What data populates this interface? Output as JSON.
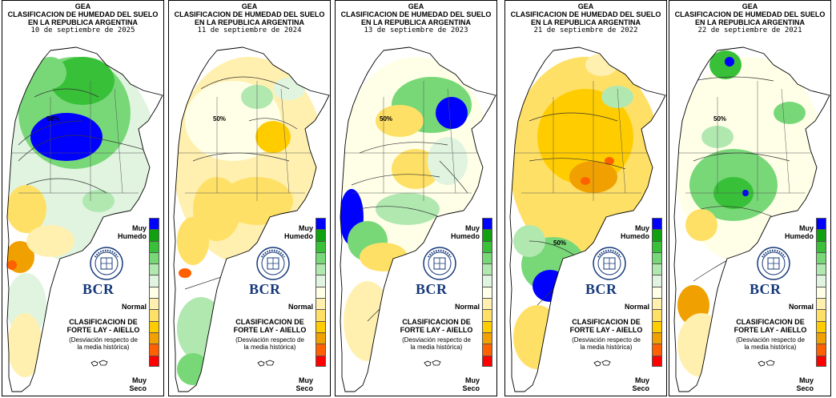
{
  "header": {
    "org": "GEA",
    "line1": "CLASIFICACION DE HUMEDAD DEL SUELO",
    "line2": "EN LA REPUBLICA ARGENTINA"
  },
  "panels": [
    {
      "date": "10 de septiembre de 2025",
      "contour_label": "50%"
    },
    {
      "date": "11 de septiembre de 2024",
      "contour_label": "50%"
    },
    {
      "date": "13 de septiembre de 2023",
      "contour_label": "50%"
    },
    {
      "date": "21 de septiembre de 2022",
      "contour_label": "50%"
    },
    {
      "date": "22 de septiembre de 2021",
      "contour_label": "50%"
    }
  ],
  "legend": {
    "top_label_1": "Muy",
    "top_label_2": "Humedo",
    "mid_label": "Normal",
    "bottom_label_1": "Muy",
    "bottom_label_2": "Seco",
    "classes": [
      "#0000ff",
      "#10a010",
      "#38c038",
      "#78d878",
      "#b0e8b0",
      "#e0f4e0",
      "#ffffe8",
      "#fff0b0",
      "#ffe066",
      "#ffcc00",
      "#f0a000",
      "#ff6000",
      "#ff0000"
    ]
  },
  "logo": {
    "text": "BCR"
  },
  "classification": {
    "title_1": "CLASIFICACION DE",
    "title_2": "FORTE LAY - AIELLO",
    "note_1": "(Desviación respecto de",
    "note_2": "la media histórica)"
  },
  "panel_positions": [
    2,
    210,
    418,
    630,
    835
  ],
  "colors": {
    "border": "#000000",
    "bcr_blue": "#16397a",
    "water": "#ffffff"
  }
}
